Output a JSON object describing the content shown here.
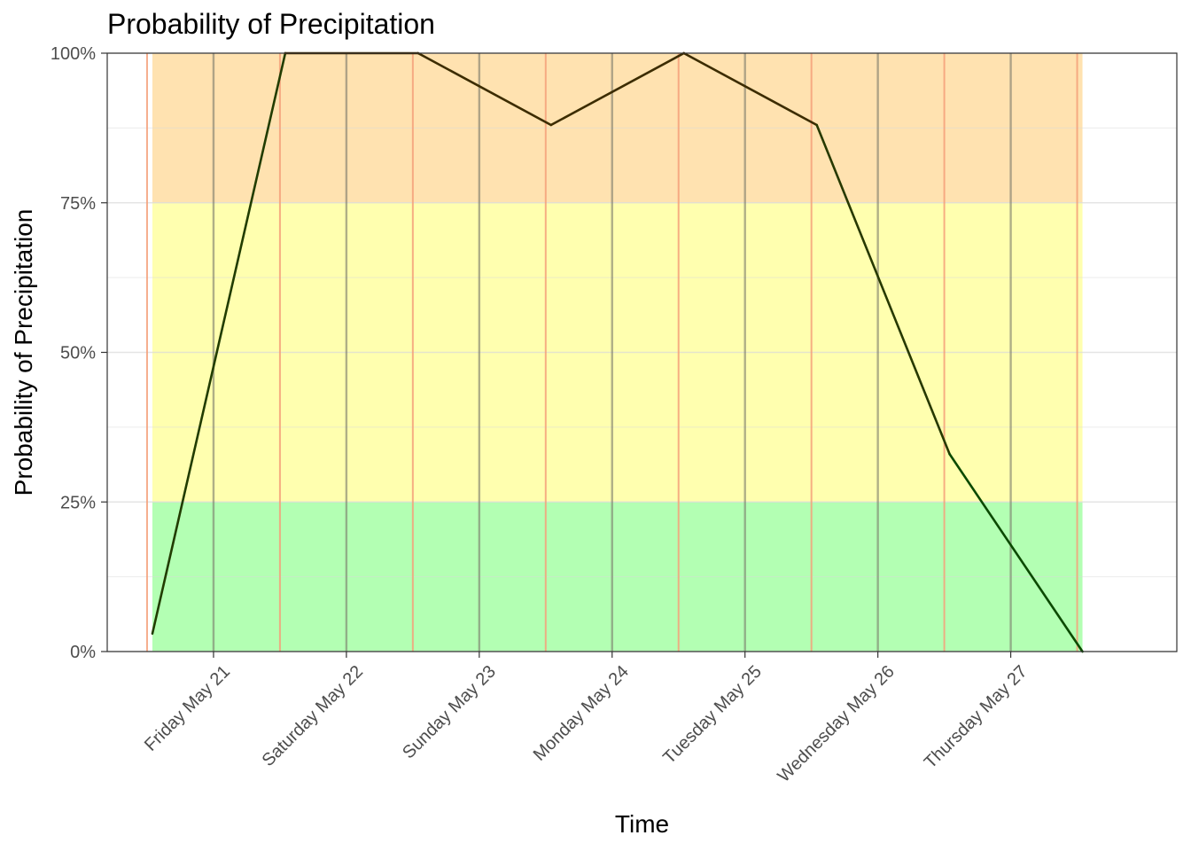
{
  "chart_data": {
    "type": "line",
    "title": "Probability of Precipitation",
    "xlabel": "Time",
    "ylabel": "Probability of Precipitation",
    "x_range": [
      -0.8,
      7.25
    ],
    "ylim": [
      0,
      1
    ],
    "y_ticks": [
      {
        "value": 0,
        "label": "0%"
      },
      {
        "value": 0.25,
        "label": "25%"
      },
      {
        "value": 0.5,
        "label": "50%"
      },
      {
        "value": 0.75,
        "label": "75%"
      },
      {
        "value": 1,
        "label": "100%"
      }
    ],
    "x_ticks": [
      {
        "value": 0,
        "label": "Friday May 21"
      },
      {
        "value": 1,
        "label": "Saturday May 22"
      },
      {
        "value": 2,
        "label": "Sunday May 23"
      },
      {
        "value": 3,
        "label": "Monday May 24"
      },
      {
        "value": 4,
        "label": "Tuesday May 25"
      },
      {
        "value": 5,
        "label": "Wednesday May 26"
      },
      {
        "value": 6,
        "label": "Thursday May 27"
      }
    ],
    "bands": [
      {
        "from": 0,
        "to": 0.25,
        "color": "#b3ffb3"
      },
      {
        "from": 0.25,
        "to": 0.75,
        "color": "#ffffaf"
      },
      {
        "from": 0.75,
        "to": 1,
        "color": "#ffe2b0"
      }
    ],
    "band_x_range": [
      -0.46,
      6.54
    ],
    "midday_lines": {
      "positions": [
        0,
        1,
        2,
        3,
        4,
        5,
        6
      ],
      "color": "#7a7a6a"
    },
    "midnight_lines": {
      "positions": [
        -0.5,
        0.5,
        1.5,
        2.5,
        3.5,
        4.5,
        5.5,
        6.5
      ],
      "color": "#f4a07a"
    },
    "series": [
      {
        "x": [
          -0.46,
          0.54,
          1.54,
          2.54,
          3.54,
          4.54,
          5.54,
          6.54
        ],
        "y": [
          0.03,
          1.0,
          1.0,
          0.88,
          1.0,
          0.88,
          0.33,
          0.0
        ]
      }
    ]
  }
}
